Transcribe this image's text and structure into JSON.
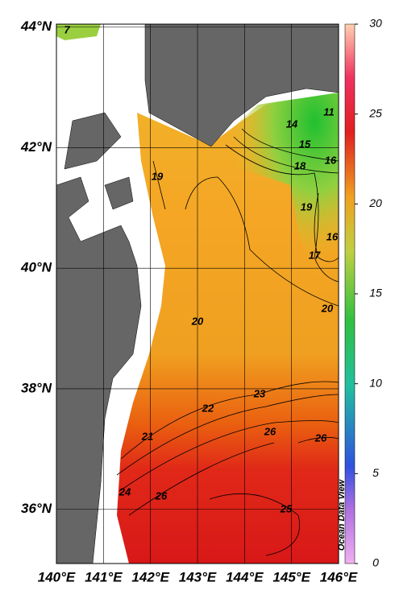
{
  "map": {
    "lon_lim": [
      140,
      146
    ],
    "lat_lim": [
      35.1,
      44.05
    ],
    "lon_ticks": [
      {
        "value": 140,
        "label": "140°E"
      },
      {
        "value": 141,
        "label": "141°E"
      },
      {
        "value": 142,
        "label": "142°E"
      },
      {
        "value": 143,
        "label": "143°E"
      },
      {
        "value": 144,
        "label": "144°E"
      },
      {
        "value": 145,
        "label": "145°E"
      },
      {
        "value": 146,
        "label": "146°E"
      }
    ],
    "lat_ticks": [
      {
        "value": 44,
        "label": "44°N"
      },
      {
        "value": 42,
        "label": "42°N"
      },
      {
        "value": 40,
        "label": "40°N"
      },
      {
        "value": 38,
        "label": "38°N"
      },
      {
        "value": 36,
        "label": "36°N"
      }
    ],
    "contour_labels": [
      "7",
      "11",
      "14",
      "15",
      "16",
      "18",
      "19",
      "19",
      "16",
      "17",
      "20",
      "20",
      "23",
      "22",
      "21",
      "26",
      "26",
      "24",
      "26",
      "25"
    ],
    "colorbar": {
      "lim": [
        0,
        30
      ],
      "ticks": [
        0,
        5,
        10,
        15,
        20,
        25,
        30
      ]
    },
    "watermark": "Ocean Data View"
  }
}
